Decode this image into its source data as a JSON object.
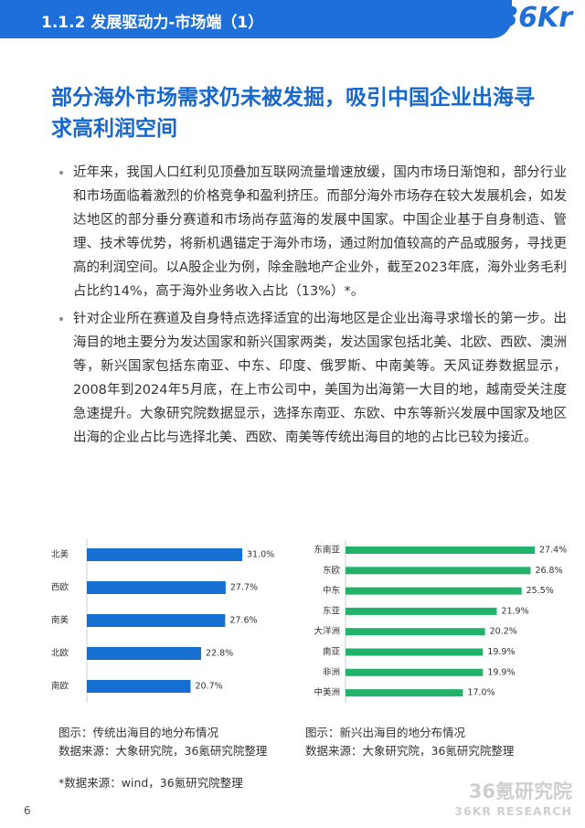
{
  "header": {
    "section": "1.1.2 发展驱动力-市场端（1）",
    "logo": "36Kr"
  },
  "title": "部分海外市场需求仍未被发掘，吸引中国企业出海寻求高利润空间",
  "bullets": [
    "近年来，我国人口红利见顶叠加互联网流量增速放缓，国内市场日渐饱和，部分行业和市场面临着激烈的价格竞争和盈利挤压。而部分海外市场存在较大发展机会，如发达地区的部分垂分赛道和市场尚存蓝海的发展中国家。中国企业基于自身制造、管理、技术等优势，将新机遇锚定于海外市场，通过附加值较高的产品或服务，寻找更高的利润空间。以A股企业为例，除金融地产企业外，截至2023年底，海外业务毛利占比约14%，高于海外业务收入占比（13%）*。",
    "针对企业所在赛道及自身特点选择适宜的出海地区是企业出海寻求增长的第一步。出海目的地主要分为发达国家和新兴国家两类，发达国家包括北美、北欧、西欧、澳洲等，新兴国家包括东南亚、中东、印度、俄罗斯、中南美等。天风证券数据显示，2008年到2024年5月底，在上市公司中，美国为出海第一大目的地，越南受关注度急速提升。大象研究院数据显示，选择东南亚、东欧、中东等新兴发展中国家及地区出海的企业占比与选择北美、西欧、南美等传统出海目的地的占比已较为接近。"
  ],
  "chart_data": [
    {
      "type": "bar",
      "orientation": "horizontal",
      "color": "#1670d2",
      "categories": [
        "北美",
        "西欧",
        "南美",
        "北欧",
        "南欧"
      ],
      "values": [
        31.0,
        27.7,
        27.6,
        22.8,
        20.7
      ],
      "value_labels": [
        "31.0%",
        "27.7%",
        "27.6%",
        "22.8%",
        "20.7%"
      ],
      "caption": "图示：传统出海目的地分布情况",
      "source": "数据来源：大象研究院，36氪研究院整理"
    },
    {
      "type": "bar",
      "orientation": "horizontal",
      "color": "#22b26a",
      "categories": [
        "东南亚",
        "东欧",
        "中东",
        "东亚",
        "大洋洲",
        "南亚",
        "非洲",
        "中美洲"
      ],
      "values": [
        27.4,
        26.8,
        25.5,
        21.9,
        20.2,
        19.9,
        19.9,
        17.0
      ],
      "value_labels": [
        "27.4%",
        "26.8%",
        "25.5%",
        "21.9%",
        "20.2%",
        "19.9%",
        "19.9%",
        "17.0%"
      ],
      "caption": "图示：新兴出海目的地分布情况",
      "source": "数据来源：大象研究院，36氪研究院整理"
    }
  ],
  "footnote": "*数据来源：wind，36氪研究院整理",
  "page_number": "6",
  "watermark": {
    "name": "36氪研究院",
    "english": "36KR RESEARCH"
  }
}
